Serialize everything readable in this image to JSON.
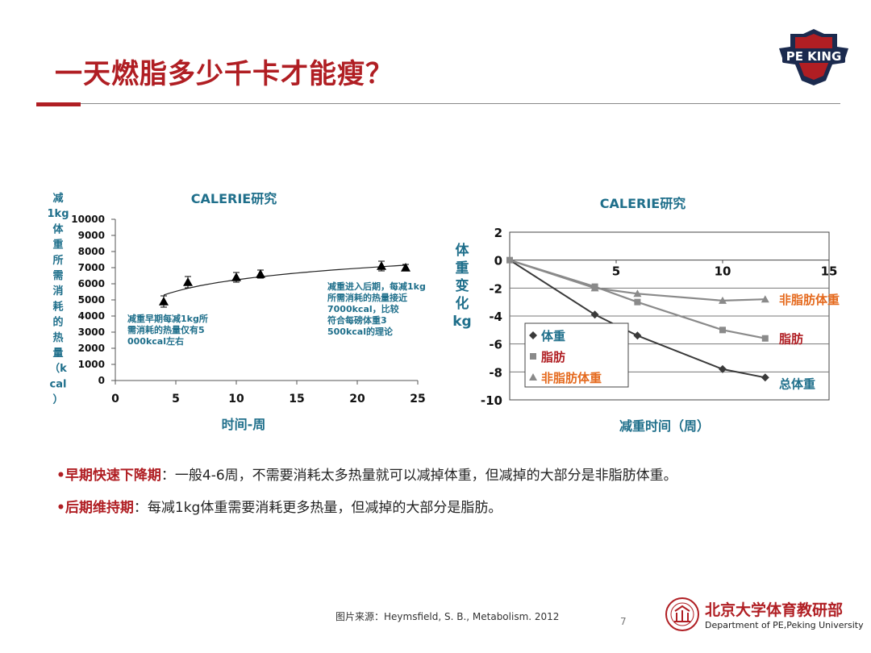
{
  "page": {
    "title": "一天燃脂多少千卡才能瘦？",
    "logo_text": "PE KING",
    "source": "图片来源：Heymsfield, S. B., Metabolism. 2012",
    "page_number": "7",
    "dept_zh": "北京大学体育教研部",
    "dept_en": "Department of PE,Peking University",
    "accent_color": "#b01e23"
  },
  "bullets": [
    {
      "lead": "•早期快速下降期",
      "text": "：一般4-6周，不需要消耗太多热量就可以减掉体重，但减掉的大部分是非脂肪体重。"
    },
    {
      "lead": "•后期维持期",
      "text": "：每减1kg体重需要消耗更多热量，但减掉的大部分是脂肪。"
    }
  ],
  "chart_data": [
    {
      "type": "scatter",
      "title": "CALERIE研究",
      "xlabel": "时间-周",
      "ylabel": "减1kg体重所需消耗的热量（kcal）",
      "xlim": [
        0,
        25
      ],
      "ylim": [
        0,
        10000
      ],
      "xticks": [
        0,
        5,
        10,
        15,
        20,
        25
      ],
      "yticks": [
        0,
        1000,
        2000,
        3000,
        4000,
        5000,
        6000,
        7000,
        8000,
        9000,
        10000
      ],
      "grid": false,
      "series": [
        {
          "x": [
            4,
            6,
            10,
            12,
            22,
            24
          ],
          "y": [
            4900,
            6100,
            6400,
            6600,
            7100,
            7000
          ],
          "error": [
            350,
            350,
            300,
            250,
            300,
            200
          ],
          "marker": "triangle",
          "color": "#000000"
        }
      ],
      "trend_line": {
        "x": [
          4,
          24
        ],
        "y": [
          5300,
          7150
        ]
      },
      "annotations": [
        "减重早期每减1kg所需消耗的热量仅有5000kcal左右",
        "减重进入后期，每减1kg所需消耗的热量接近7000kcal，比较符合每磅体重3500kcal的理论"
      ],
      "label_color": "#1f6f8b"
    },
    {
      "type": "line",
      "title": "CALERIE研究",
      "xlabel": "减重时间（周）",
      "ylabel": "体重变化kg",
      "xlim": [
        0,
        15
      ],
      "ylim": [
        -10,
        2
      ],
      "xticks": [
        5,
        10,
        15
      ],
      "yticks": [
        2,
        0,
        -2,
        -4,
        -6,
        -8,
        -10
      ],
      "grid": true,
      "legend_position": "bottom-left",
      "series": [
        {
          "name": "体重",
          "end_label": "总体重",
          "marker": "diamond",
          "color": "#3a3a3a",
          "x": [
            0,
            4,
            6,
            10,
            12
          ],
          "y": [
            0,
            -3.9,
            -5.4,
            -7.8,
            -8.4
          ]
        },
        {
          "name": "脂肪",
          "end_label": "脂肪",
          "marker": "square",
          "color": "#8a8a8a",
          "x": [
            0,
            4,
            6,
            10,
            12
          ],
          "y": [
            0,
            -1.9,
            -3.0,
            -5.0,
            -5.6
          ]
        },
        {
          "name": "非脂肪体重",
          "end_label": "非脂肪体重",
          "marker": "triangle",
          "color": "#8a8a8a",
          "x": [
            0,
            4,
            6,
            10,
            12
          ],
          "y": [
            0,
            -2.0,
            -2.4,
            -2.9,
            -2.8
          ]
        }
      ],
      "label_color": "#1f6f8b",
      "legend_colors": [
        "#1f6f8b",
        "#b01e23",
        "#e56a1e"
      ],
      "end_label_colors": [
        "#1f6f8b",
        "#b01e23",
        "#e56a1e"
      ]
    }
  ]
}
